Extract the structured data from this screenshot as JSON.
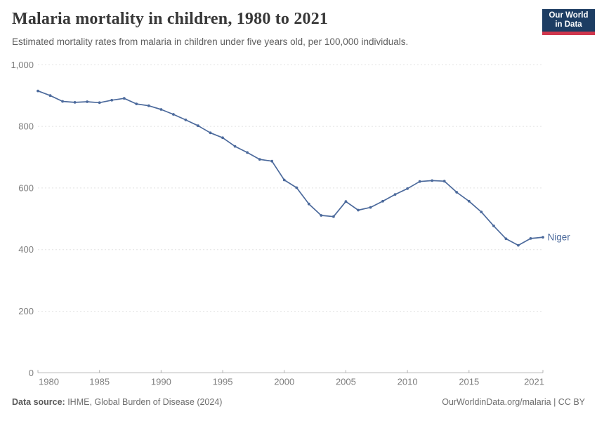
{
  "page": {
    "title": "Malaria mortality in children, 1980 to 2021",
    "subtitle": "Estimated mortality rates from malaria in children under five years old, per 100,000 individuals.",
    "logo": {
      "line1": "Our World",
      "line2": "in Data"
    },
    "footer": {
      "source_label": "Data source:",
      "source_text": " IHME, Global Burden of Disease (2024)",
      "credit": "OurWorldinData.org/malaria | CC BY"
    }
  },
  "colors": {
    "line": "#4c6a9c",
    "series_label": "#4c6a9c",
    "grid": "#e2e2e2",
    "axis": "#b3b3b3",
    "axis_text": "#7d7d7d",
    "logo_bg": "#1d3d63",
    "logo_bar": "#d0374d"
  },
  "chart_data": {
    "type": "line",
    "title": "Malaria mortality in children, 1980 to 2021",
    "subtitle": "Estimated mortality rates from malaria in children under five years old, per 100,000 individuals.",
    "xlabel": "",
    "ylabel": "",
    "xlim": [
      1980,
      2021
    ],
    "ylim": [
      0,
      1000
    ],
    "xticks": [
      1980,
      1985,
      1990,
      1995,
      2000,
      2005,
      2010,
      2015,
      2021
    ],
    "yticks": [
      0,
      200,
      400,
      600,
      800,
      1000
    ],
    "ytick_labels": [
      "0",
      "200",
      "400",
      "600",
      "800",
      "1,000"
    ],
    "grid": "horizontal-dashed",
    "legend_position": "end-of-line",
    "x": [
      1980,
      1981,
      1982,
      1983,
      1984,
      1985,
      1986,
      1987,
      1988,
      1989,
      1990,
      1991,
      1992,
      1993,
      1994,
      1995,
      1996,
      1997,
      1998,
      1999,
      2000,
      2001,
      2002,
      2003,
      2004,
      2005,
      2006,
      2007,
      2008,
      2009,
      2010,
      2011,
      2012,
      2013,
      2014,
      2015,
      2016,
      2017,
      2018,
      2019,
      2020,
      2021
    ],
    "series": [
      {
        "name": "Niger",
        "values": [
          915,
          900,
          881,
          878,
          880,
          877,
          885,
          891,
          873,
          867,
          855,
          839,
          821,
          802,
          779,
          763,
          735,
          715,
          693,
          687,
          626,
          601,
          548,
          511,
          507,
          556,
          528,
          537,
          557,
          579,
          598,
          621,
          624,
          622,
          586,
          557,
          522,
          477,
          435,
          414,
          436,
          440
        ]
      }
    ]
  }
}
